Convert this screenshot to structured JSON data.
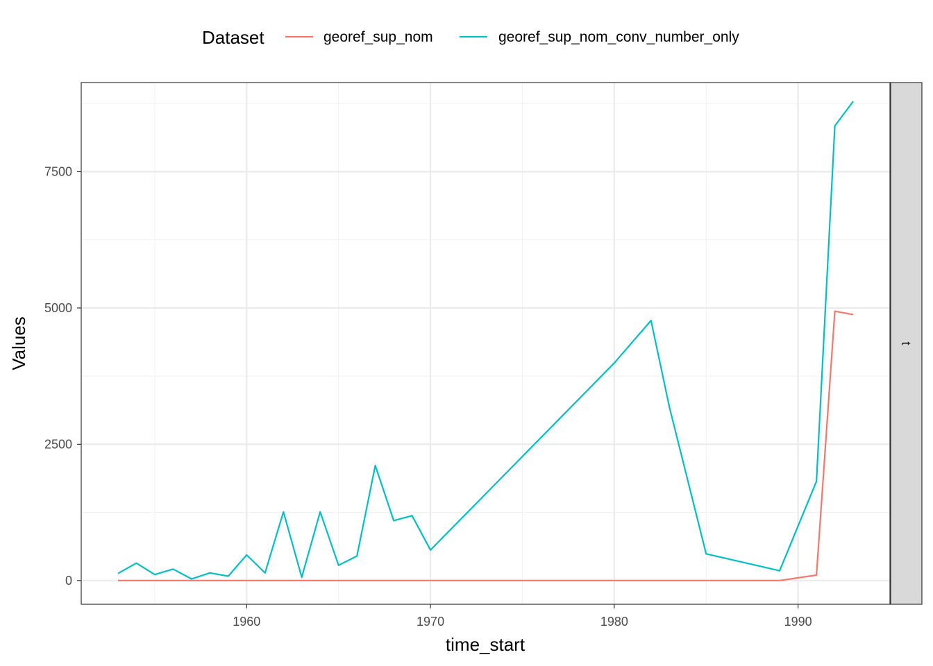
{
  "chart_data": {
    "type": "line",
    "xlabel": "time_start",
    "ylabel": "Values",
    "xlim": [
      1951.0,
      1995.0
    ],
    "ylim": [
      -435,
      9135
    ],
    "x_ticks": [
      1960,
      1970,
      1980,
      1990
    ],
    "x_minor_ticks": [
      1955,
      1965,
      1975,
      1985
    ],
    "y_ticks": [
      0,
      2500,
      5000,
      7500
    ],
    "y_minor_ticks": [
      1250,
      3750,
      6250,
      8750
    ],
    "grid": true,
    "legend": {
      "title": "Dataset",
      "position": "top"
    },
    "facet_strip_label": "t",
    "series": [
      {
        "name": "georef_sup_nom",
        "color": "#F8766D",
        "points": [
          [
            1953,
            0
          ],
          [
            1954,
            0
          ],
          [
            1955,
            0
          ],
          [
            1956,
            0
          ],
          [
            1957,
            0
          ],
          [
            1958,
            0
          ],
          [
            1959,
            0
          ],
          [
            1960,
            0
          ],
          [
            1961,
            0
          ],
          [
            1962,
            0
          ],
          [
            1963,
            0
          ],
          [
            1964,
            0
          ],
          [
            1965,
            0
          ],
          [
            1966,
            0
          ],
          [
            1967,
            0
          ],
          [
            1968,
            0
          ],
          [
            1969,
            0
          ],
          [
            1970,
            0
          ],
          [
            1980,
            0
          ],
          [
            1982,
            0
          ],
          [
            1983,
            0
          ],
          [
            1985,
            0
          ],
          [
            1989,
            0
          ],
          [
            1991,
            100
          ],
          [
            1992,
            4940
          ],
          [
            1993,
            4880
          ]
        ]
      },
      {
        "name": "georef_sup_nom_conv_number_only",
        "color": "#00BFC4",
        "points": [
          [
            1953,
            130
          ],
          [
            1954,
            320
          ],
          [
            1955,
            110
          ],
          [
            1956,
            210
          ],
          [
            1957,
            30
          ],
          [
            1958,
            140
          ],
          [
            1959,
            80
          ],
          [
            1960,
            470
          ],
          [
            1961,
            140
          ],
          [
            1962,
            1260
          ],
          [
            1963,
            60
          ],
          [
            1964,
            1260
          ],
          [
            1965,
            280
          ],
          [
            1966,
            450
          ],
          [
            1967,
            2110
          ],
          [
            1968,
            1100
          ],
          [
            1969,
            1190
          ],
          [
            1970,
            560
          ],
          [
            1980,
            3990
          ],
          [
            1982,
            4770
          ],
          [
            1983,
            3180
          ],
          [
            1985,
            490
          ],
          [
            1989,
            180
          ],
          [
            1991,
            1820
          ],
          [
            1992,
            8340
          ],
          [
            1993,
            8790
          ]
        ]
      }
    ]
  }
}
